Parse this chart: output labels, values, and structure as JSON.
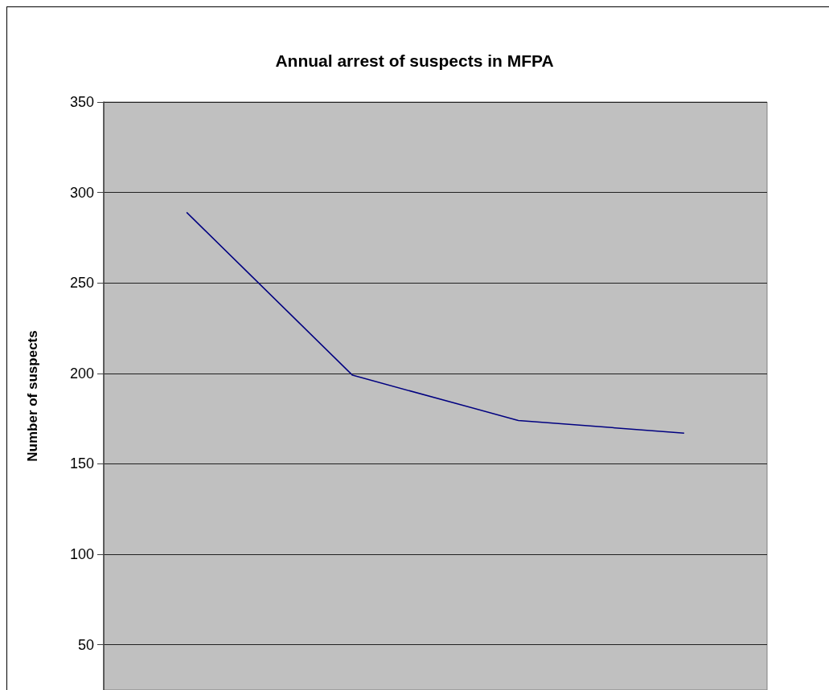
{
  "chart_data": {
    "type": "line",
    "title": "Annual arrest of suspects in MFPA",
    "ylabel": "Number of suspects",
    "categories": [
      null,
      null,
      null,
      null
    ],
    "series": [
      {
        "color": "#000080",
        "values": [
          289,
          199,
          174,
          167
        ]
      }
    ],
    "ylim": [
      25,
      350
    ],
    "yticks": [
      50,
      100,
      150,
      200,
      250,
      300,
      350
    ],
    "grid": "y",
    "tick_labels": "y",
    "marker": "none",
    "line_style": "solid"
  }
}
